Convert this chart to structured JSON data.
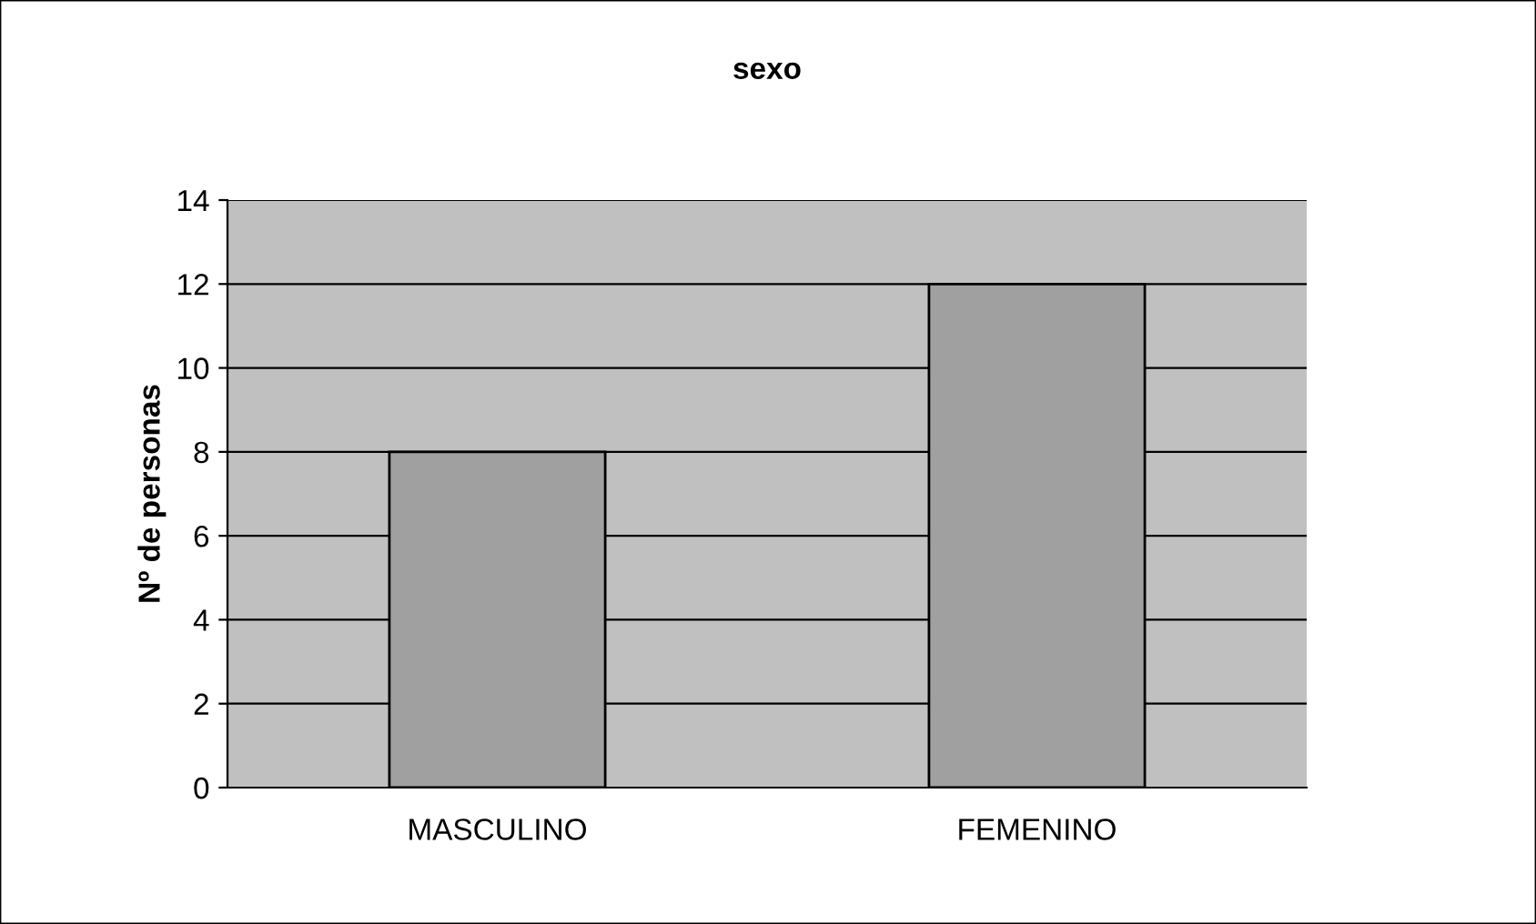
{
  "chart_data": {
    "type": "bar",
    "title": "sexo",
    "ylabel": "Nº de personas",
    "categories": [
      "MASCULINO",
      "FEMENINO"
    ],
    "values": [
      8,
      12
    ],
    "color": "#a0a0a0",
    "ylim": [
      0,
      14
    ],
    "yticks": [
      0,
      2,
      4,
      6,
      8,
      10,
      12,
      14
    ],
    "grid": "y",
    "legend": false
  }
}
